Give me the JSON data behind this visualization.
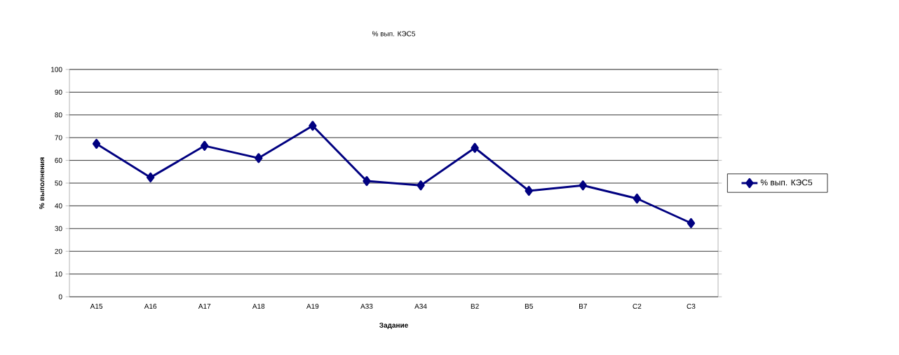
{
  "chart_data": {
    "type": "line",
    "title": "% вып. КЭС5",
    "xlabel": "Задание",
    "ylabel": "% выполнения",
    "categories": [
      "А15",
      "А16",
      "А17",
      "А18",
      "А19",
      "А33",
      "А34",
      "В2",
      "В5",
      "В7",
      "С2",
      "С3"
    ],
    "series": [
      {
        "name": "% вып. КЭС5",
        "color": "#000080",
        "values": [
          67.3,
          52.5,
          66.4,
          61.0,
          75.2,
          50.9,
          49.0,
          65.5,
          46.6,
          49.0,
          43.2,
          32.4
        ]
      }
    ],
    "ylim": [
      0,
      100
    ],
    "yticks": [
      0,
      10,
      20,
      30,
      40,
      50,
      60,
      70,
      80,
      90,
      100
    ],
    "grid": "y",
    "legend": "right",
    "marker": "diamond",
    "line_style": "solid"
  }
}
